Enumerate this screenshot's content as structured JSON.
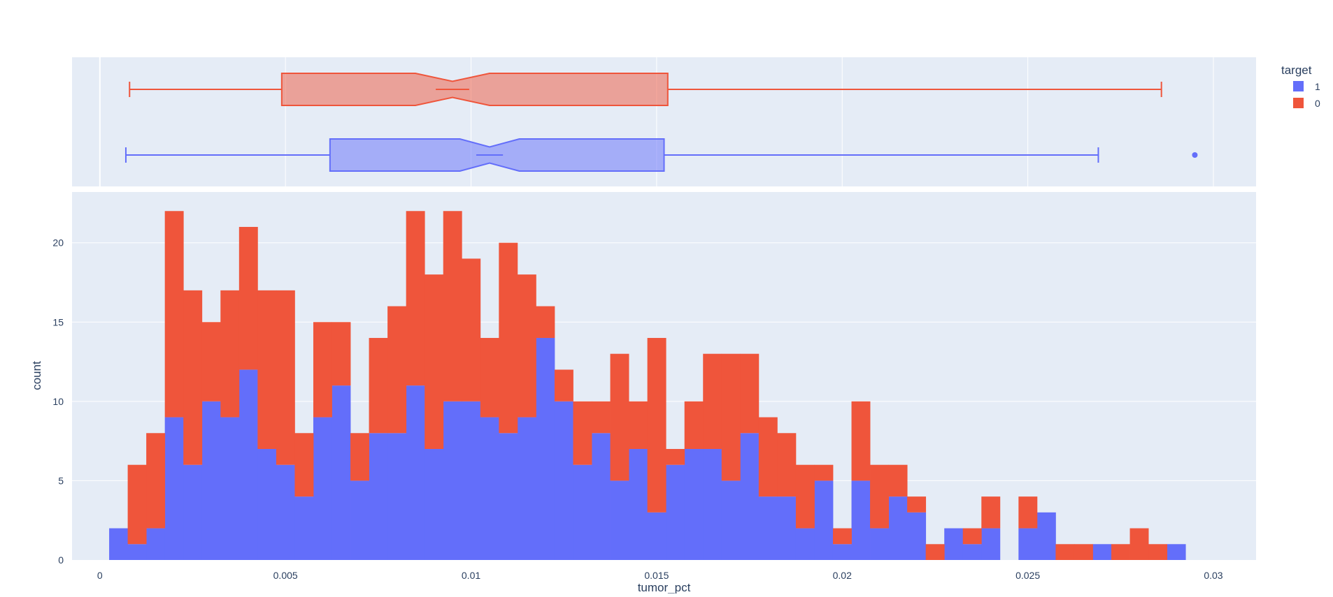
{
  "chart_data": {
    "type": "histogram",
    "barmode": "stack",
    "xlabel": "tumor_pct",
    "ylabel": "count",
    "x_range": [
      -0.00075,
      0.03115
    ],
    "y_range": [
      0,
      23.2
    ],
    "x_ticks": [
      0,
      0.005,
      0.01,
      0.015,
      0.02,
      0.025,
      0.03
    ],
    "x_tick_labels": [
      "0",
      "0.005",
      "0.01",
      "0.015",
      "0.02",
      "0.025",
      "0.03"
    ],
    "y_ticks": [
      0,
      5,
      10,
      15,
      20
    ],
    "y_tick_labels": [
      "0",
      "5",
      "10",
      "15",
      "20"
    ],
    "bin_start": 0.00025,
    "bin_size": 0.0005,
    "legend": {
      "title": "target",
      "placement": "top-right",
      "entries": [
        "1",
        "0"
      ]
    },
    "series": [
      {
        "name": "1",
        "color": "#636efa",
        "counts": [
          2,
          1,
          2,
          9,
          6,
          10,
          9,
          12,
          7,
          6,
          4,
          9,
          11,
          5,
          8,
          8,
          11,
          7,
          10,
          10,
          9,
          8,
          9,
          14,
          10,
          6,
          8,
          5,
          7,
          3,
          6,
          7,
          7,
          5,
          8,
          4,
          4,
          2,
          5,
          1,
          5,
          2,
          4,
          3,
          0,
          2,
          1,
          2,
          0,
          2,
          3,
          0,
          0,
          1,
          0,
          0,
          0,
          1
        ],
        "box": {
          "min": 0.0007,
          "q1": 0.0062,
          "median": 0.0105,
          "q3": 0.0152,
          "max": 0.0269,
          "notch_low": 0.0097,
          "notch_high": 0.0113,
          "outliers": [
            0.0295
          ]
        }
      },
      {
        "name": "0",
        "color": "#ef553b",
        "counts": [
          0,
          5,
          6,
          13,
          11,
          5,
          8,
          9,
          10,
          11,
          4,
          6,
          4,
          3,
          6,
          8,
          11,
          11,
          12,
          9,
          5,
          12,
          9,
          2,
          2,
          4,
          2,
          8,
          3,
          11,
          1,
          3,
          6,
          8,
          5,
          5,
          4,
          4,
          1,
          1,
          5,
          4,
          2,
          1,
          1,
          0,
          1,
          2,
          0,
          2,
          0,
          1,
          1,
          0,
          1,
          2,
          1,
          0
        ],
        "box": {
          "min": 0.0008,
          "q1": 0.0049,
          "median": 0.0095,
          "q3": 0.0153,
          "max": 0.0286,
          "notch_low": 0.0085,
          "notch_high": 0.0105,
          "outliers": []
        }
      }
    ]
  }
}
